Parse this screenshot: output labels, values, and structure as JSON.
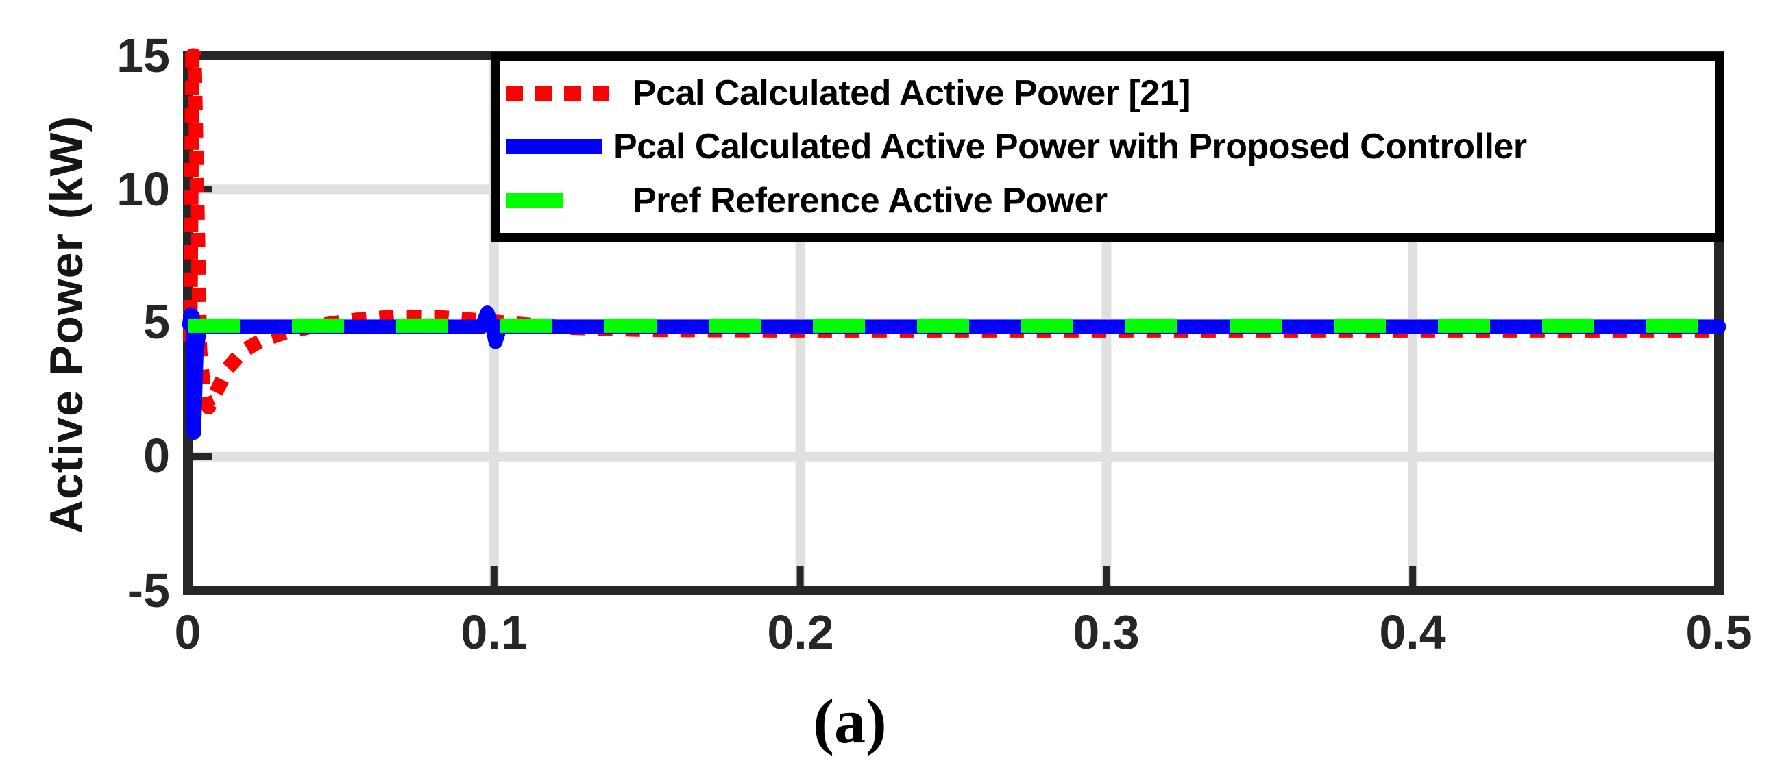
{
  "figure": {
    "caption": "(a)"
  },
  "chart_data": {
    "type": "line",
    "title": "",
    "xlabel": "",
    "ylabel": "Active Power (kW)",
    "x_range": [
      0,
      0.5
    ],
    "y_range": [
      -5,
      15
    ],
    "x_ticks": [
      0,
      0.1,
      0.2,
      0.3,
      0.4,
      0.5
    ],
    "x_tick_labels": [
      "0",
      "0.1",
      "0.2",
      "0.3",
      "0.4",
      "0.5"
    ],
    "y_ticks": [
      -5,
      0,
      5,
      10,
      15
    ],
    "y_tick_labels": [
      "-5",
      "0",
      "5",
      "10",
      "15"
    ],
    "x_gridlines": [
      0.1,
      0.2,
      0.3,
      0.4
    ],
    "y_gridlines": [
      0,
      5,
      10
    ],
    "grid": true,
    "legend_position": "top-inside",
    "colors": {
      "grid": "#e0e0e0",
      "axis": "#262626",
      "legend_border": "#000000",
      "background": "#ffffff"
    },
    "series": [
      {
        "name": "Pcal Calculated Active Power [21]",
        "color": "#ff0000",
        "style": "dotted",
        "points": [
          [
            0.0008,
            4.3
          ],
          [
            0.0015,
            15
          ],
          [
            0.0022,
            15
          ],
          [
            0.004,
            4.0
          ],
          [
            0.0055,
            2.2
          ],
          [
            0.0068,
            1.85
          ],
          [
            0.009,
            2.35
          ],
          [
            0.013,
            3.3
          ],
          [
            0.018,
            3.95
          ],
          [
            0.024,
            4.35
          ],
          [
            0.032,
            4.65
          ],
          [
            0.042,
            4.9
          ],
          [
            0.055,
            5.12
          ],
          [
            0.068,
            5.24
          ],
          [
            0.082,
            5.22
          ],
          [
            0.095,
            5.1
          ],
          [
            0.11,
            4.95
          ],
          [
            0.125,
            4.82
          ],
          [
            0.15,
            4.74
          ],
          [
            0.2,
            4.72
          ],
          [
            0.5,
            4.72
          ]
        ]
      },
      {
        "name": "Pcal Calculated Active Power with Proposed Controller",
        "color": "#0000ff",
        "style": "solid",
        "points": [
          [
            0.0005,
            4.95
          ],
          [
            0.001,
            5.32
          ],
          [
            0.0016,
            5.25
          ],
          [
            0.002,
            0.9
          ],
          [
            0.0028,
            3.9
          ],
          [
            0.0038,
            4.75
          ],
          [
            0.005,
            4.86
          ],
          [
            0.096,
            4.86
          ],
          [
            0.0978,
            5.38
          ],
          [
            0.0995,
            4.86
          ],
          [
            0.1005,
            4.3
          ],
          [
            0.102,
            4.86
          ],
          [
            0.5,
            4.86
          ]
        ]
      },
      {
        "name": "Pref Reference Active Power",
        "color": "#00ff00",
        "style": "dashed",
        "points": [
          [
            0,
            4.9
          ],
          [
            0.5,
            4.9
          ]
        ]
      }
    ]
  }
}
